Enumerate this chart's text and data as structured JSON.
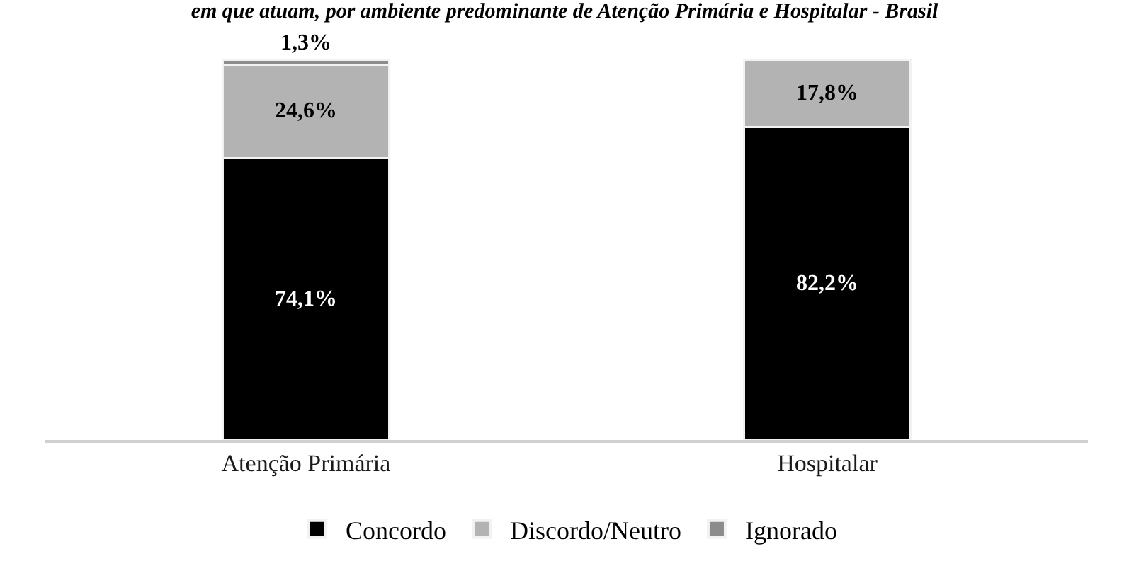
{
  "chart_data": {
    "type": "bar",
    "title": "em que atuam, por ambiente predominante de Atenção Primária e Hospitalar - Brasil",
    "categories": [
      "Atenção Primária",
      "Hospitalar"
    ],
    "stacked": true,
    "series": [
      {
        "name": "Concordo",
        "color": "#000000",
        "values": [
          74.1,
          82.2
        ],
        "value_labels": [
          "74,1%",
          "82,2%"
        ]
      },
      {
        "name": "Discordo/Neutro",
        "color": "#b3b3b3",
        "values": [
          24.6,
          17.8
        ],
        "value_labels": [
          "24,6%",
          "17,8%"
        ]
      },
      {
        "name": "Ignorado",
        "color": "#8c8c8c",
        "values": [
          1.3,
          null
        ],
        "value_labels": [
          "1,3%",
          null
        ]
      }
    ],
    "ylim": [
      0,
      100
    ],
    "tick_labels": "x",
    "legend": "bottom"
  }
}
